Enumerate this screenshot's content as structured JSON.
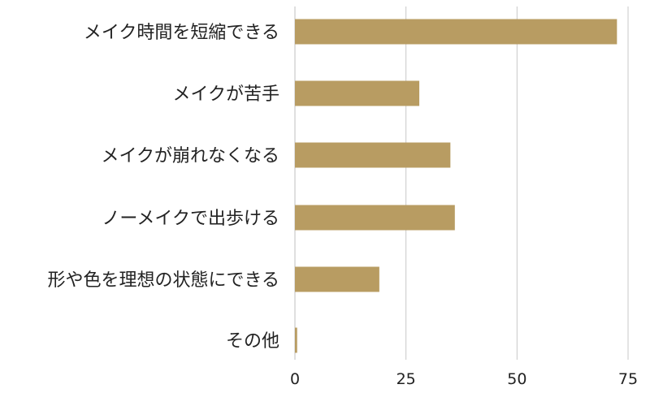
{
  "chart_data": {
    "type": "bar",
    "orientation": "horizontal",
    "categories": [
      "メイク時間を短縮できる",
      "メイクが苦手",
      "メイクが崩れなくなる",
      "ノーメイクで出歩ける",
      "形や色を理想の状態にできる",
      "その他"
    ],
    "values": [
      72.5,
      28,
      35,
      36,
      19,
      0.5
    ],
    "xlim": [
      0,
      75
    ],
    "xticks": [
      0,
      25,
      50,
      75
    ],
    "grid": true,
    "legend": "none",
    "bar_color": "#b89c62"
  }
}
